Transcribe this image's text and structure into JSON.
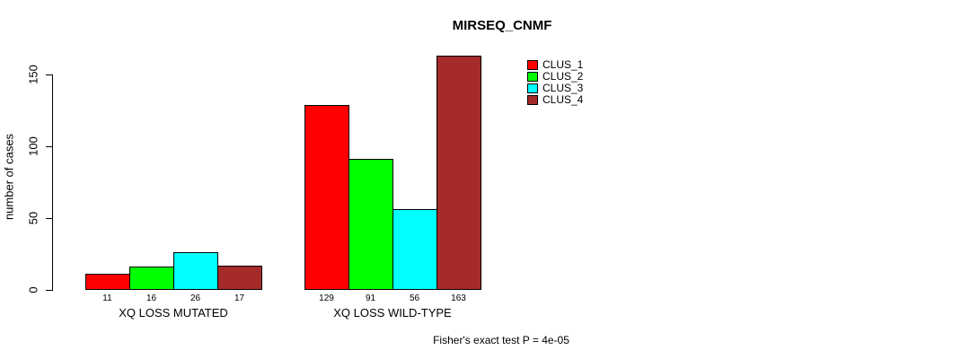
{
  "chart_data": {
    "type": "bar",
    "title": "MIRSEQ_CNMF",
    "ylabel": "number of cases",
    "xlabel": "",
    "ylim": [
      0,
      163
    ],
    "yticks": [
      0,
      50,
      100,
      150
    ],
    "grid": false,
    "categories": [
      "XQ LOSS MUTATED",
      "XQ LOSS WILD-TYPE"
    ],
    "series": [
      {
        "name": "CLUS_1",
        "color": "#ff0000",
        "values": [
          11,
          129
        ]
      },
      {
        "name": "CLUS_2",
        "color": "#00ff00",
        "values": [
          16,
          91
        ]
      },
      {
        "name": "CLUS_3",
        "color": "#00ffff",
        "values": [
          26,
          56
        ]
      },
      {
        "name": "CLUS_4",
        "color": "#a52a2a",
        "values": [
          17,
          163
        ]
      }
    ],
    "bar_value_labels": [
      [
        "11",
        "16",
        "26",
        "17"
      ],
      [
        "129",
        "91",
        "56",
        "163"
      ]
    ],
    "legend": {
      "position": "top-right",
      "entries": [
        {
          "label": "CLUS_1",
          "color": "#ff0000"
        },
        {
          "label": "CLUS_2",
          "color": "#00ff00"
        },
        {
          "label": "CLUS_3",
          "color": "#00ffff"
        },
        {
          "label": "CLUS_4",
          "color": "#a52a2a"
        }
      ]
    },
    "annotation": "Fisher's exact test P = 4e-05",
    "colors": {
      "background": "#ffffff",
      "axis": "#000000",
      "text": "#000000"
    }
  }
}
